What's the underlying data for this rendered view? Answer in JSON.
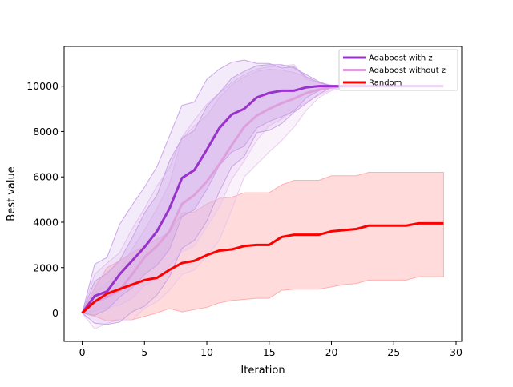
{
  "chart_data": {
    "type": "line",
    "title": "",
    "xlabel": "Iteration",
    "ylabel": "Best value",
    "xlim": [
      -1.45,
      30.45
    ],
    "ylim": [
      -1250,
      11750
    ],
    "xticks": [
      0,
      5,
      10,
      15,
      20,
      25,
      30
    ],
    "yticks": [
      0,
      2000,
      4000,
      6000,
      8000,
      10000
    ],
    "grid": false,
    "legend_position": "top-right",
    "x": [
      0,
      1,
      2,
      3,
      4,
      5,
      6,
      7,
      8,
      9,
      10,
      11,
      12,
      13,
      14,
      15,
      16,
      17,
      18,
      19,
      20,
      21,
      22,
      23,
      24,
      25,
      26,
      27,
      28,
      29
    ],
    "series": [
      {
        "name": "Adaboost with z",
        "color": "#9932cc",
        "band_color": "#c79ee6",
        "values": [
          0,
          750,
          950,
          1700,
          2300,
          2900,
          3600,
          4600,
          5950,
          6300,
          7200,
          8150,
          8750,
          9000,
          9500,
          9700,
          9800,
          9800,
          9950,
          10000,
          10000,
          10000,
          10000,
          10000,
          10000,
          10000,
          10000,
          10000,
          10000,
          10000
        ],
        "band_inner_upper": [
          0,
          1400,
          1750,
          2300,
          3300,
          4400,
          5200,
          6700,
          7700,
          8050,
          9100,
          9700,
          10350,
          10650,
          10900,
          10950,
          10950,
          10800,
          10500,
          10200,
          10000,
          10000,
          10000,
          10000,
          10000,
          10000,
          10000,
          10000,
          10000,
          10000
        ],
        "band_inner_lower": [
          0,
          -100,
          150,
          700,
          1100,
          1700,
          2100,
          2800,
          4250,
          4550,
          5450,
          6500,
          7100,
          7350,
          8150,
          8450,
          8650,
          8900,
          9500,
          9800,
          10000,
          10000,
          10000,
          10000,
          10000,
          10000,
          10000,
          10000,
          10000,
          10000
        ],
        "band_outer_upper": [
          0,
          2150,
          2450,
          3900,
          4750,
          5550,
          6450,
          7800,
          9150,
          9300,
          10300,
          10750,
          11050,
          11150,
          11000,
          11000,
          10800,
          10850,
          10400,
          10150,
          10000,
          10000,
          10000,
          10000,
          10000,
          10000,
          10000,
          10000,
          10000,
          10000
        ],
        "band_outer_lower": [
          0,
          -450,
          -500,
          -400,
          50,
          300,
          800,
          1600,
          2850,
          3200,
          4050,
          5350,
          6450,
          6900,
          7950,
          8050,
          8350,
          8850,
          9250,
          9650,
          9950,
          10000,
          10000,
          10000,
          10000,
          10000,
          10000,
          10000,
          10000,
          10000
        ]
      },
      {
        "name": "Adaboost without z",
        "color": "#dda0dd",
        "band_color": "#e8c5ef",
        "values": [
          0,
          500,
          700,
          1000,
          1700,
          2450,
          2950,
          3600,
          4800,
          5200,
          5800,
          6550,
          7400,
          8200,
          8700,
          9000,
          9250,
          9450,
          9700,
          9850,
          9950,
          10000,
          10000,
          10000,
          10000,
          10000,
          10000,
          10000,
          10000,
          10000
        ],
        "band_inner_upper": [
          0,
          900,
          1300,
          1900,
          2800,
          3650,
          4600,
          5700,
          7700,
          8250,
          8700,
          9500,
          10050,
          10400,
          10650,
          10750,
          10700,
          10600,
          10400,
          10150,
          10050,
          10000,
          10000,
          10000,
          10000,
          10000,
          10000,
          10000,
          10000,
          10000
        ],
        "band_inner_lower": [
          0,
          100,
          250,
          350,
          650,
          1200,
          1500,
          2100,
          2700,
          2950,
          3800,
          4650,
          5900,
          6700,
          7600,
          8250,
          8550,
          8950,
          9300,
          9600,
          9850,
          10000,
          10000,
          10000,
          10000,
          10000,
          10000,
          10000,
          10000,
          10000
        ],
        "band_outer_upper": [
          0,
          1700,
          2200,
          2650,
          3700,
          4600,
          5600,
          6400,
          7750,
          8500,
          9200,
          9700,
          10150,
          10500,
          10750,
          10850,
          10900,
          10950,
          10300,
          10150,
          10050,
          10000,
          10000,
          10000,
          10000,
          10000,
          10000,
          10000,
          10000,
          10000
        ],
        "band_outer_lower": [
          0,
          -700,
          -450,
          -300,
          -300,
          200,
          500,
          1000,
          1700,
          1900,
          2500,
          3200,
          4550,
          6000,
          6550,
          7100,
          7600,
          8200,
          8950,
          9500,
          9800,
          9950,
          10000,
          10000,
          10000,
          10000,
          10000,
          10000,
          10000,
          10000
        ]
      },
      {
        "name": "Random",
        "color": "#ff0000",
        "band_color": "#ffb0b0",
        "values": [
          0,
          500,
          850,
          1050,
          1250,
          1450,
          1550,
          1900,
          2200,
          2300,
          2550,
          2750,
          2800,
          2950,
          3000,
          3000,
          3350,
          3450,
          3450,
          3450,
          3600,
          3650,
          3700,
          3850,
          3850,
          3850,
          3850,
          3950,
          3950,
          3950
        ],
        "band_upper": [
          0,
          1100,
          2000,
          2300,
          2650,
          2950,
          3250,
          3550,
          4400,
          4450,
          4800,
          5050,
          5100,
          5300,
          5300,
          5300,
          5650,
          5850,
          5850,
          5850,
          6050,
          6050,
          6050,
          6200,
          6200,
          6200,
          6200,
          6200,
          6200,
          6200
        ],
        "band_lower": [
          0,
          -150,
          -350,
          -300,
          -300,
          -150,
          0,
          200,
          50,
          150,
          250,
          450,
          550,
          600,
          650,
          650,
          1000,
          1050,
          1050,
          1050,
          1150,
          1250,
          1300,
          1450,
          1450,
          1450,
          1450,
          1600,
          1600,
          1600
        ]
      }
    ]
  }
}
